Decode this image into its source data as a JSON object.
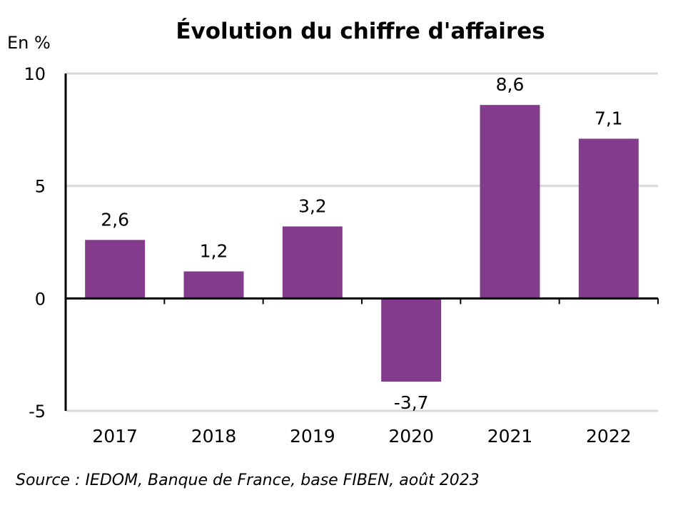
{
  "chart_data": {
    "type": "bar",
    "title": "Évolution du chiffre d'affaires",
    "ylabel": "En %",
    "xlabel": "",
    "categories": [
      "2017",
      "2018",
      "2019",
      "2020",
      "2021",
      "2022"
    ],
    "values": [
      2.6,
      1.2,
      3.2,
      -3.7,
      8.6,
      7.1
    ],
    "value_labels": [
      "2,6",
      "1,2",
      "3,2",
      "-3,7",
      "8,6",
      "7,1"
    ],
    "ylim": [
      -5,
      10
    ],
    "yticks": [
      10,
      5,
      0,
      -5
    ],
    "grid": true,
    "legend": "none",
    "bar_color": "#833C8B",
    "source": "Source : IEDOM, Banque de France, base FIBEN, août 2023"
  }
}
